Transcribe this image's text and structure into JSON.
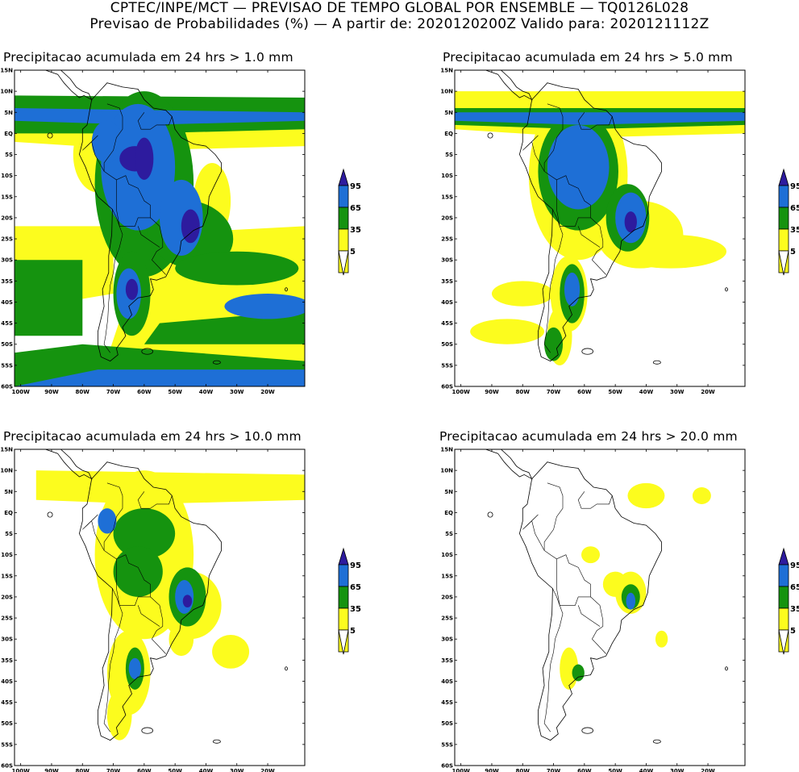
{
  "header": {
    "line1": "CPTEC/INPE/MCT — PREVISAO DE TEMPO GLOBAL POR ENSEMBLE — TQ0126L028",
    "line2": "Previsao de Probabilidades (%) —  A partir de: 2020120200Z  Valido para: 2020121112Z"
  },
  "axes": {
    "lat_labels": [
      "15N",
      "10N",
      "5N",
      "EQ",
      "5S",
      "10S",
      "15S",
      "20S",
      "25S",
      "30S",
      "35S",
      "40S",
      "45S",
      "50S",
      "55S",
      "60S"
    ],
    "lon_labels": [
      "100W",
      "90W",
      "80W",
      "70W",
      "60W",
      "50W",
      "40W",
      "30W",
      "20W"
    ]
  },
  "legend": {
    "labels": [
      "95",
      "65",
      "35",
      "5"
    ],
    "colors": [
      "#2d1b9e",
      "#1e6fd6",
      "#15930f",
      "#fcfc1e"
    ]
  },
  "colors": {
    "p5": "#fcfc1e",
    "p35": "#15930f",
    "p65": "#1e6fd6",
    "p95": "#2d1b9e"
  },
  "panels": [
    {
      "title": "Precipitacao acumulada em 24 hrs > 1.0 mm",
      "threshold": "1.0"
    },
    {
      "title": "Precipitacao acumulada em 24 hrs > 5.0 mm",
      "threshold": "5.0"
    },
    {
      "title": "Precipitacao acumulada em 24 hrs > 10.0 mm",
      "threshold": "10.0"
    },
    {
      "title": "Precipitacao acumulada em 24 hrs > 20.0 mm",
      "threshold": "20.0"
    }
  ]
}
